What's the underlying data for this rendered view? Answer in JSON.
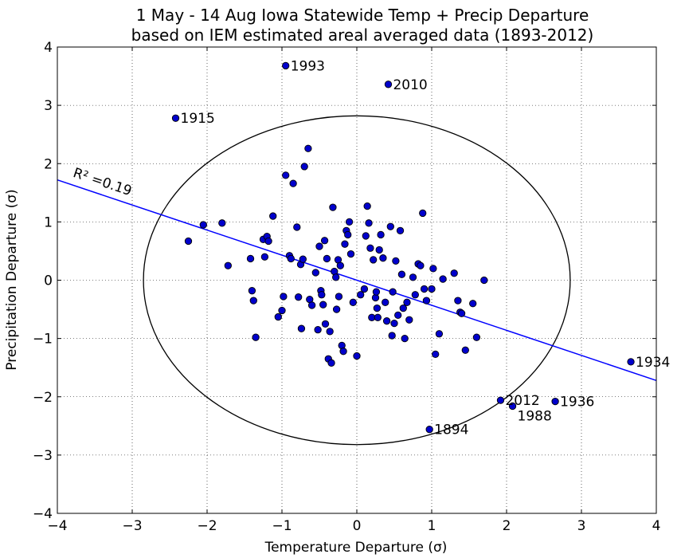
{
  "chart_data": {
    "type": "scatter",
    "title_line1": "1 May - 14 Aug Iowa Statewide Temp + Precip Departure",
    "title_line2": "based on IEM estimated areal averaged data (1893-2012)",
    "xlabel": "Temperature Departure (σ)",
    "ylabel": "Precipitation Departure (σ)",
    "xlim": [
      -4,
      4
    ],
    "ylim": [
      -4,
      4
    ],
    "xticks": [
      "−4",
      "−3",
      "−2",
      "−1",
      "0",
      "1",
      "2",
      "3",
      "4"
    ],
    "yticks": [
      "−4",
      "−3",
      "−2",
      "−1",
      "0",
      "1",
      "2",
      "3",
      "4"
    ],
    "grid": true,
    "marker_color": "#0000cc",
    "fit_line_color": "#0000ff",
    "fit_line": {
      "x": [
        -4,
        4
      ],
      "y": [
        1.72,
        -1.72
      ]
    },
    "r2_label": "R² =0.19",
    "reference_circle": {
      "center": [
        0,
        0
      ],
      "radius_x": 2.85,
      "radius_y": 2.82
    },
    "labeled_points": [
      {
        "label": "1993",
        "x": -0.95,
        "y": 3.68
      },
      {
        "label": "2010",
        "x": 0.42,
        "y": 3.36
      },
      {
        "label": "1915",
        "x": -2.42,
        "y": 2.78
      },
      {
        "label": "1934",
        "x": 3.66,
        "y": -1.4
      },
      {
        "label": "2012",
        "x": 1.92,
        "y": -2.06
      },
      {
        "label": "1988",
        "x": 2.08,
        "y": -2.16
      },
      {
        "label": "1936",
        "x": 2.65,
        "y": -2.08
      },
      {
        "label": "1894",
        "x": 0.97,
        "y": -2.56
      }
    ],
    "points": [
      [
        -2.25,
        0.67
      ],
      [
        -2.05,
        0.95
      ],
      [
        -1.8,
        0.98
      ],
      [
        -1.72,
        0.25
      ],
      [
        -1.42,
        0.37
      ],
      [
        -1.4,
        -0.18
      ],
      [
        -1.38,
        -0.35
      ],
      [
        -1.35,
        -0.98
      ],
      [
        -1.25,
        0.7
      ],
      [
        -1.23,
        0.4
      ],
      [
        -1.2,
        0.75
      ],
      [
        -1.18,
        0.67
      ],
      [
        -1.12,
        1.1
      ],
      [
        -1.05,
        -0.63
      ],
      [
        -1.0,
        -0.52
      ],
      [
        -0.98,
        -0.28
      ],
      [
        -0.95,
        1.8
      ],
      [
        -0.9,
        0.42
      ],
      [
        -0.88,
        0.37
      ],
      [
        -0.85,
        1.66
      ],
      [
        -0.8,
        0.91
      ],
      [
        -0.78,
        -0.29
      ],
      [
        -0.75,
        0.27
      ],
      [
        -0.74,
        -0.83
      ],
      [
        -0.72,
        0.36
      ],
      [
        -0.7,
        1.95
      ],
      [
        -0.65,
        2.26
      ],
      [
        -0.63,
        -0.33
      ],
      [
        -0.6,
        -0.43
      ],
      [
        -0.55,
        0.13
      ],
      [
        -0.52,
        -0.85
      ],
      [
        -0.5,
        0.58
      ],
      [
        -0.48,
        -0.18
      ],
      [
        -0.47,
        -0.25
      ],
      [
        -0.45,
        -0.42
      ],
      [
        -0.43,
        0.68
      ],
      [
        -0.42,
        -0.75
      ],
      [
        -0.4,
        0.37
      ],
      [
        -0.38,
        -1.35
      ],
      [
        -0.36,
        -0.88
      ],
      [
        -0.34,
        -1.42
      ],
      [
        -0.32,
        1.25
      ],
      [
        -0.3,
        0.15
      ],
      [
        -0.28,
        0.05
      ],
      [
        -0.27,
        -0.5
      ],
      [
        -0.25,
        0.35
      ],
      [
        -0.24,
        -0.28
      ],
      [
        -0.22,
        0.25
      ],
      [
        -0.2,
        -1.12
      ],
      [
        -0.18,
        -1.22
      ],
      [
        -0.16,
        0.62
      ],
      [
        -0.14,
        0.85
      ],
      [
        -0.12,
        0.78
      ],
      [
        -0.1,
        1.0
      ],
      [
        -0.08,
        0.45
      ],
      [
        -0.05,
        -0.38
      ],
      [
        0.0,
        -1.3
      ],
      [
        0.05,
        -0.25
      ],
      [
        0.1,
        -0.15
      ],
      [
        0.12,
        0.76
      ],
      [
        0.14,
        1.27
      ],
      [
        0.16,
        0.98
      ],
      [
        0.18,
        0.55
      ],
      [
        0.2,
        -0.64
      ],
      [
        0.22,
        0.35
      ],
      [
        0.25,
        -0.3
      ],
      [
        0.26,
        -0.2
      ],
      [
        0.27,
        -0.48
      ],
      [
        0.28,
        -0.64
      ],
      [
        0.3,
        0.52
      ],
      [
        0.32,
        0.78
      ],
      [
        0.35,
        0.38
      ],
      [
        0.38,
        -0.38
      ],
      [
        0.4,
        -0.7
      ],
      [
        0.45,
        0.92
      ],
      [
        0.47,
        -0.95
      ],
      [
        0.48,
        -0.2
      ],
      [
        0.5,
        -0.74
      ],
      [
        0.52,
        0.33
      ],
      [
        0.55,
        -0.6
      ],
      [
        0.58,
        0.85
      ],
      [
        0.6,
        0.1
      ],
      [
        0.62,
        -0.48
      ],
      [
        0.64,
        -1.0
      ],
      [
        0.67,
        -0.38
      ],
      [
        0.7,
        -0.68
      ],
      [
        0.75,
        0.05
      ],
      [
        0.78,
        -0.25
      ],
      [
        0.82,
        0.28
      ],
      [
        0.85,
        0.25
      ],
      [
        0.88,
        1.15
      ],
      [
        0.9,
        -0.15
      ],
      [
        0.93,
        -0.35
      ],
      [
        1.0,
        -0.15
      ],
      [
        1.02,
        0.2
      ],
      [
        1.05,
        -1.27
      ],
      [
        1.1,
        -0.92
      ],
      [
        1.15,
        0.02
      ],
      [
        1.3,
        0.12
      ],
      [
        1.35,
        -0.35
      ],
      [
        1.38,
        -0.55
      ],
      [
        1.4,
        -0.57
      ],
      [
        1.45,
        -1.2
      ],
      [
        1.55,
        -0.4
      ],
      [
        1.6,
        -0.98
      ],
      [
        1.7,
        0.0
      ]
    ]
  }
}
